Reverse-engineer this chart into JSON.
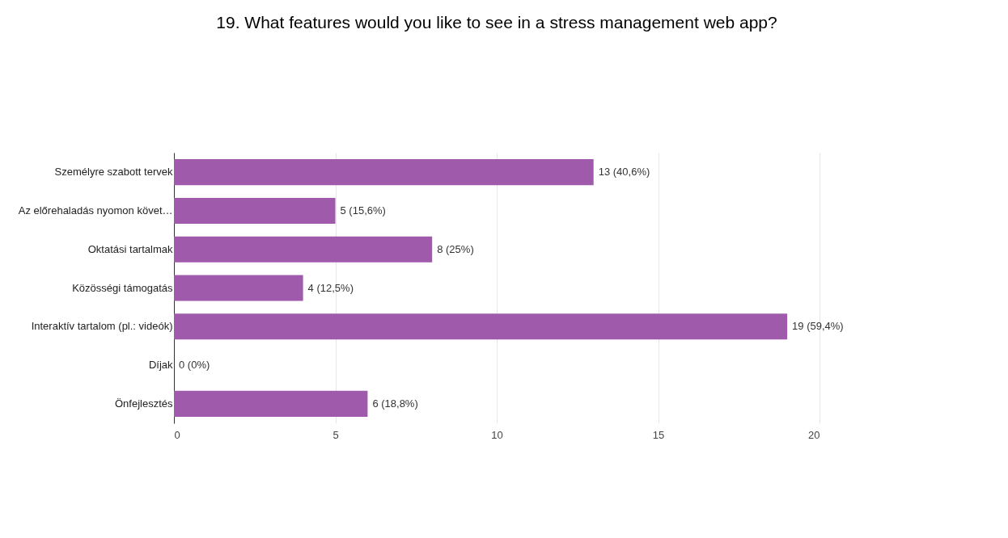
{
  "chart_data": {
    "type": "bar",
    "orientation": "horizontal",
    "title": "19. What features would you like to see in a stress management web app?",
    "categories": [
      "Személyre szabott tervek",
      "Az előrehaladás nyomon követ…",
      "Oktatási tartalmak",
      "Közösségi támogatás",
      "Interaktív tartalom (pl.: videók)",
      "Díjak",
      "Önfejlesztés"
    ],
    "values": [
      13,
      5,
      8,
      4,
      19,
      0,
      6
    ],
    "value_labels": [
      "13 (40,6%)",
      "5 (15,6%)",
      "8 (25%)",
      "4 (12,5%)",
      "19 (59,4%)",
      "0 (0%)",
      "6 (18,8%)"
    ],
    "color": "#a05aab",
    "xlim": [
      0,
      20
    ],
    "xticks": [
      0,
      5,
      10,
      15,
      20
    ],
    "grid": "x"
  }
}
